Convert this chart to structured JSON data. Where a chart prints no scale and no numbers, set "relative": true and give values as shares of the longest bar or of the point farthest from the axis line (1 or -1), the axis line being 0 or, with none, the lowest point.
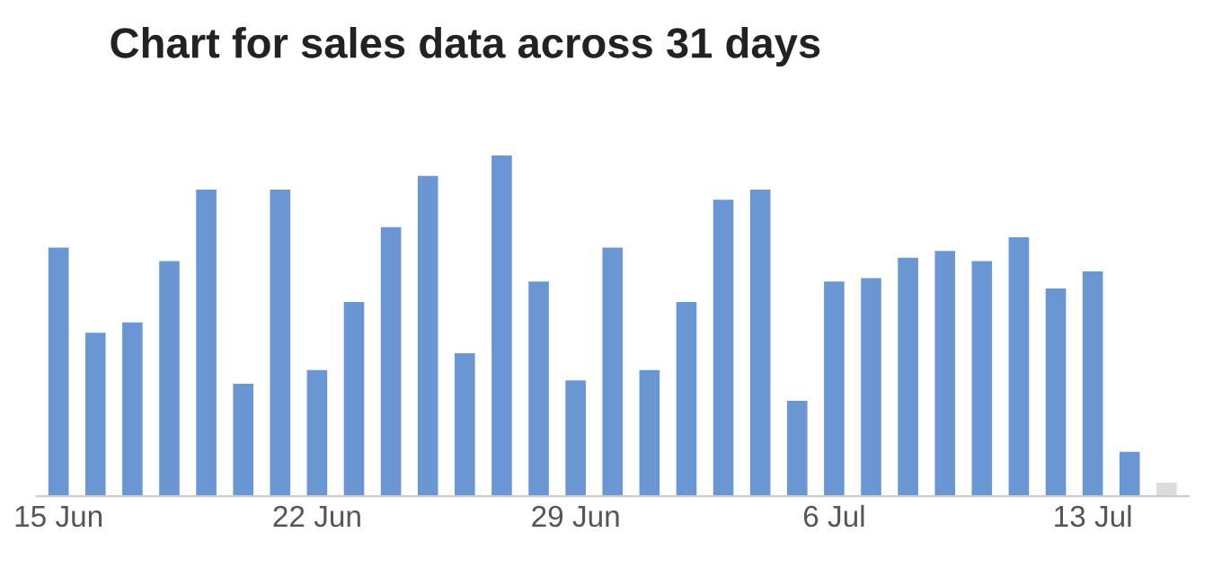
{
  "chart_data": {
    "type": "bar",
    "title": "Chart for sales data across 31 days",
    "relative": true,
    "categories": [
      "15 Jun",
      null,
      null,
      null,
      null,
      null,
      null,
      "22 Jun",
      null,
      null,
      null,
      null,
      null,
      null,
      "29 Jun",
      null,
      null,
      null,
      null,
      null,
      null,
      "6 Jul",
      null,
      null,
      null,
      null,
      null,
      null,
      "13 Jul",
      null,
      null
    ],
    "values": [
      0.73,
      0.48,
      0.51,
      0.69,
      0.9,
      0.33,
      0.9,
      0.37,
      0.57,
      0.79,
      0.94,
      0.42,
      1,
      0.63,
      0.34,
      0.73,
      0.37,
      0.57,
      0.87,
      0.9,
      0.28,
      0.63,
      0.64,
      0.7,
      0.72,
      0.69,
      0.76,
      0.61,
      0.66,
      0.13,
      0.04
    ],
    "colors": [
      "#6a96d4",
      "#6a96d4",
      "#6a96d4",
      "#6a96d4",
      "#6a96d4",
      "#6a96d4",
      "#6a96d4",
      "#6a96d4",
      "#6a96d4",
      "#6a96d4",
      "#6a96d4",
      "#6a96d4",
      "#6a96d4",
      "#6a96d4",
      "#6a96d4",
      "#6a96d4",
      "#6a96d4",
      "#6a96d4",
      "#6a96d4",
      "#6a96d4",
      "#6a96d4",
      "#6a96d4",
      "#6a96d4",
      "#6a96d4",
      "#6a96d4",
      "#6a96d4",
      "#6a96d4",
      "#6a96d4",
      "#6a96d4",
      "#6a96d4",
      "#dcdcdc"
    ]
  }
}
